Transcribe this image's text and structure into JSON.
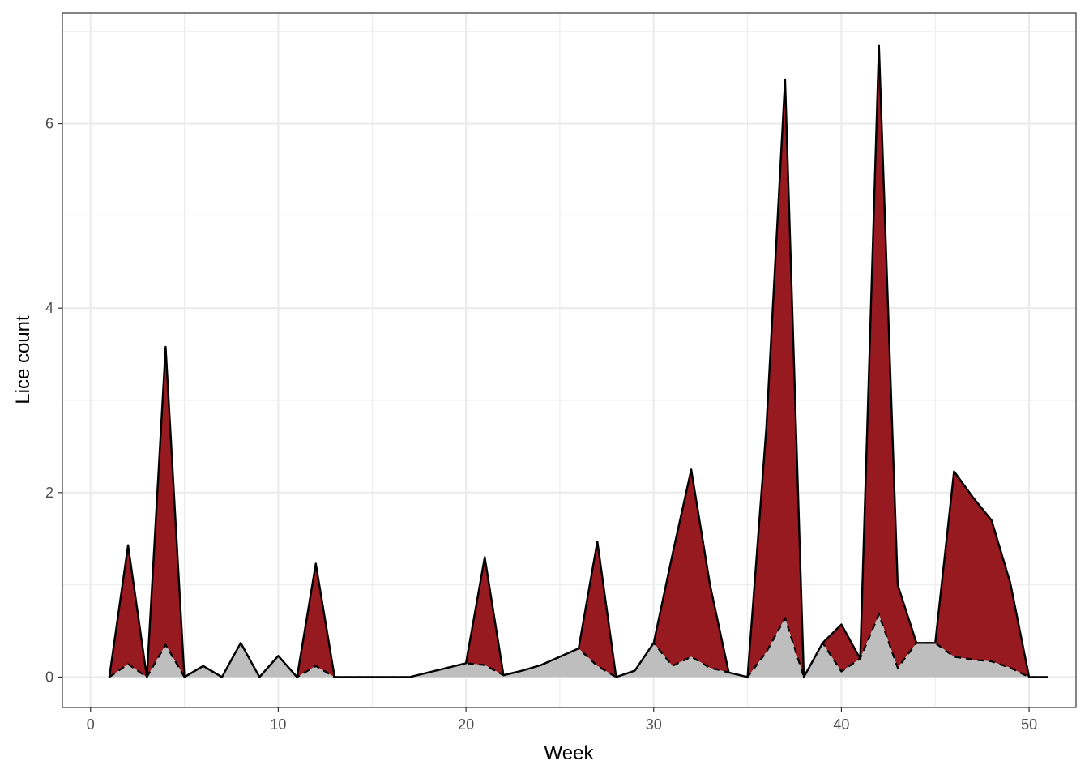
{
  "chart_data": {
    "type": "area",
    "xlabel": "Week",
    "ylabel": "Lice count",
    "xlim": [
      -1.5,
      52.5
    ],
    "ylim": [
      -0.33,
      7.2
    ],
    "x_ticks": [
      0,
      10,
      20,
      30,
      40,
      50
    ],
    "y_ticks": [
      0,
      2,
      4,
      6
    ],
    "grid": true,
    "legend": "none",
    "colors": {
      "upper_fill": "#961A1F",
      "lower_fill": "#BEBEBE",
      "line": "#000000",
      "grid": "#EBEBEB",
      "panel_border": "#333333"
    },
    "series": [
      {
        "line": "solid",
        "x": [
          1,
          2,
          3,
          4,
          5,
          6,
          7,
          8,
          9,
          10,
          11,
          12,
          13,
          14,
          15,
          16,
          17,
          18,
          19,
          20,
          21,
          22,
          23,
          24,
          25,
          26,
          27,
          28,
          29,
          30,
          31,
          32,
          33,
          34,
          35,
          36,
          37,
          38,
          39,
          40,
          41,
          42,
          43,
          44,
          45,
          46,
          47,
          48,
          49,
          50,
          51
        ],
        "values": [
          0,
          1.43,
          0,
          3.58,
          0,
          0.12,
          0,
          0.37,
          0,
          0.23,
          0,
          1.23,
          0,
          0,
          0,
          0,
          0,
          0.05,
          0.1,
          0.15,
          1.3,
          0.02,
          0.07,
          0.13,
          0.22,
          0.31,
          1.47,
          0,
          0.07,
          0.37,
          1.33,
          2.25,
          1.0,
          0.05,
          0,
          2.7,
          6.48,
          0,
          0.37,
          0.57,
          0.2,
          6.85,
          1.0,
          0.37,
          0.37,
          2.23,
          1.95,
          1.7,
          1.02,
          0,
          0
        ]
      },
      {
        "line": "dashed",
        "x": [
          1,
          2,
          3,
          4,
          5,
          6,
          7,
          8,
          9,
          10,
          11,
          12,
          13,
          14,
          15,
          16,
          17,
          18,
          19,
          20,
          21,
          22,
          23,
          24,
          25,
          26,
          27,
          28,
          29,
          30,
          31,
          32,
          33,
          34,
          35,
          36,
          37,
          38,
          39,
          40,
          41,
          42,
          43,
          44,
          45,
          46,
          47,
          48,
          49,
          50,
          51
        ],
        "values": [
          0,
          0.14,
          0,
          0.35,
          0,
          0.12,
          0,
          0.37,
          0,
          0.23,
          0,
          0.12,
          0,
          0,
          0,
          0,
          0,
          0.05,
          0.1,
          0.15,
          0.13,
          0.02,
          0.07,
          0.13,
          0.22,
          0.31,
          0.12,
          0,
          0.07,
          0.37,
          0.12,
          0.22,
          0.1,
          0.05,
          0,
          0.27,
          0.64,
          0,
          0.37,
          0.06,
          0.2,
          0.68,
          0.1,
          0.37,
          0.37,
          0.22,
          0.19,
          0.17,
          0.1,
          0,
          0
        ]
      }
    ]
  }
}
